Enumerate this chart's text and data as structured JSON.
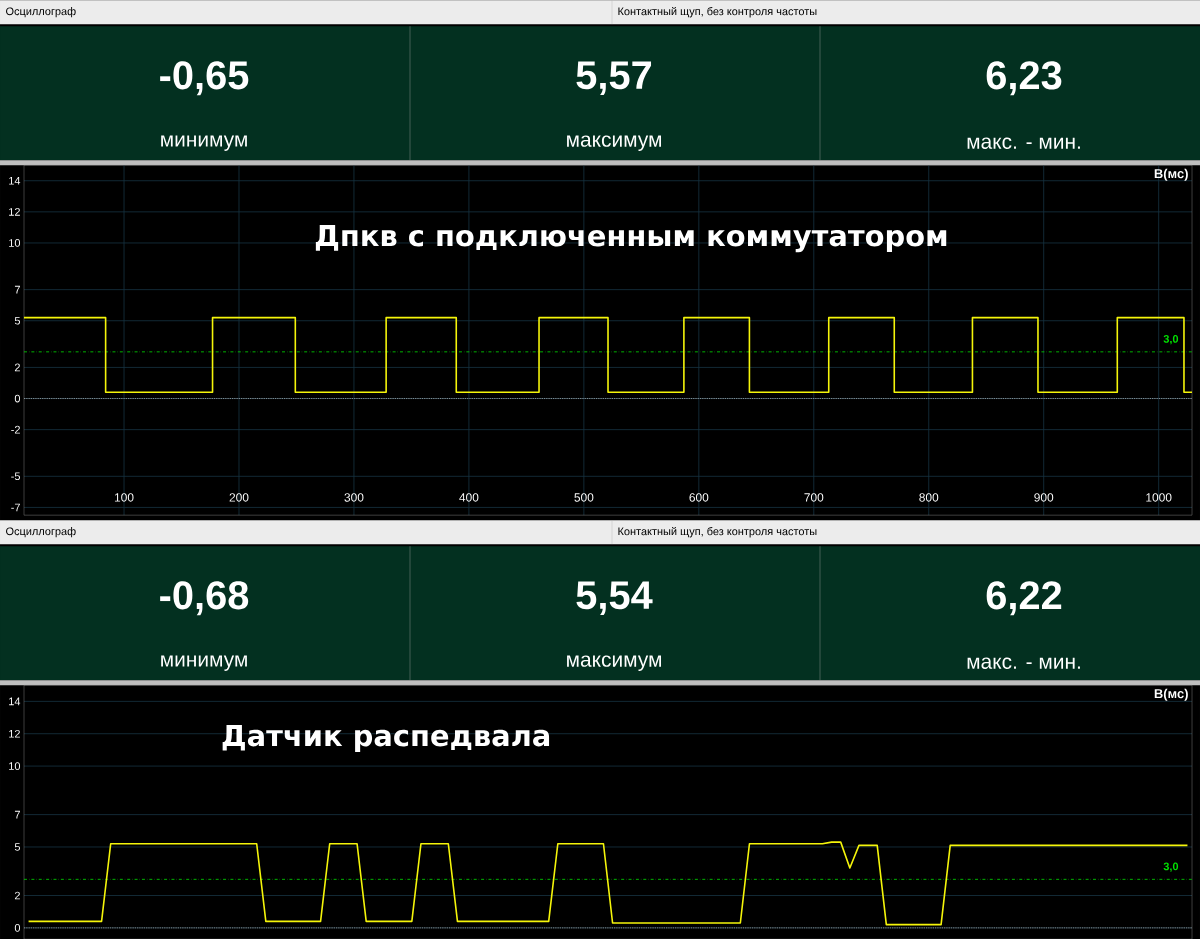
{
  "chart_data": [
    {
      "type": "line",
      "title": "Дпкв с подключенным коммутатором",
      "ylabel": "В(мс)",
      "annotations": [
        "Осциллограф",
        "Контактный щуп, без контроля частоты",
        "-0,65",
        "минимум",
        "5,57",
        "максимум",
        "6,23",
        "макс. - мин."
      ],
      "x": [
        13,
        84,
        84,
        177,
        177,
        249,
        249,
        328,
        328,
        389,
        389,
        461,
        461,
        521,
        521,
        587,
        587,
        644,
        644,
        713,
        713,
        770,
        770,
        838,
        838,
        895,
        895,
        964,
        964,
        1022,
        1022,
        1029
      ],
      "series": [
        {
          "color": "#f5f50a",
          "values": [
            5.2,
            5.2,
            0.4,
            0.4,
            5.2,
            5.2,
            0.4,
            0.4,
            5.2,
            5.2,
            0.4,
            0.4,
            5.2,
            5.2,
            0.4,
            0.4,
            5.2,
            5.2,
            0.4,
            0.4,
            5.2,
            5.2,
            0.4,
            0.4,
            5.2,
            5.2,
            0.4,
            0.4,
            5.2,
            5.2,
            0.4,
            0.4
          ]
        }
      ],
      "xlim": [
        13,
        1029
      ],
      "xticks": [
        100,
        200,
        300,
        400,
        500,
        600,
        700,
        800,
        900,
        1000
      ],
      "ylim": [
        -7.5,
        15
      ],
      "yticks": [
        -7,
        -5,
        -2,
        0,
        2,
        5,
        7,
        10,
        12,
        14
      ],
      "ref_lines": [
        {
          "axis": "y",
          "value": 0,
          "color": "#c8c8c8",
          "line_style": "dotted"
        },
        {
          "axis": "y",
          "value": 3,
          "label": "3,0",
          "color": "#00e000",
          "line_style": "dashed"
        }
      ],
      "grid": true
    },
    {
      "type": "line",
      "title": "Датчик распедвала",
      "ylabel": "В(мс)",
      "annotations": [
        "Осциллограф",
        "Контактный щуп, без контроля частоты",
        "-0,68",
        "минимум",
        "5,54",
        "максимум",
        "6,22",
        "макс. - мин."
      ],
      "categories": [
        null,
        null,
        null,
        null,
        null,
        null,
        null,
        null,
        null,
        null,
        null,
        null,
        null,
        null,
        null,
        null,
        null,
        null,
        null,
        null,
        null,
        null,
        null,
        null,
        null,
        null,
        null,
        null,
        null,
        null,
        null,
        null,
        null,
        null,
        null,
        null,
        null,
        null,
        null,
        null,
        null,
        null,
        null,
        null,
        null,
        null,
        null,
        null,
        null,
        null,
        null,
        null,
        null,
        null,
        null,
        null,
        null,
        null,
        null,
        null,
        null,
        null,
        null,
        null,
        null,
        null,
        null,
        null,
        null,
        null,
        null,
        null,
        null,
        null,
        null,
        null,
        null,
        null,
        null,
        null,
        null,
        null,
        null,
        null,
        null,
        null,
        null,
        null,
        null,
        null,
        null,
        null,
        null,
        null,
        null,
        null,
        null,
        null,
        null,
        null,
        null,
        null,
        null,
        null,
        null,
        null,
        null,
        null,
        null,
        null,
        null,
        null,
        null,
        null,
        null,
        null,
        null,
        null,
        null,
        null,
        null,
        null,
        null,
        null,
        null,
        null,
        null,
        null
      ],
      "series": [
        {
          "color": "#f5f50a",
          "values": [
            0.4,
            0.4,
            0.4,
            0.4,
            0.4,
            0.4,
            0.4,
            0.4,
            0.4,
            5.2,
            5.2,
            5.2,
            5.2,
            5.2,
            5.2,
            5.2,
            5.2,
            5.2,
            5.2,
            5.2,
            5.2,
            5.2,
            5.2,
            5.2,
            5.2,
            5.2,
            0.4,
            0.4,
            0.4,
            0.4,
            0.4,
            0.4,
            0.4,
            5.2,
            5.2,
            5.2,
            5.2,
            0.4,
            0.4,
            0.4,
            0.4,
            0.4,
            0.4,
            5.2,
            5.2,
            5.2,
            5.2,
            0.4,
            0.4,
            0.4,
            0.4,
            0.4,
            0.4,
            0.4,
            0.4,
            0.4,
            0.4,
            0.4,
            5.2,
            5.2,
            5.2,
            5.2,
            5.2,
            5.2,
            0.3,
            0.3,
            0.3,
            0.3,
            0.3,
            0.3,
            0.3,
            0.3,
            0.3,
            0.3,
            0.3,
            0.3,
            0.3,
            0.3,
            0.3,
            5.2,
            5.2,
            5.2,
            5.2,
            5.2,
            5.2,
            5.2,
            5.2,
            5.2,
            5.3,
            5.3,
            3.7,
            5.1,
            5.1,
            5.1,
            0.2,
            0.2,
            0.2,
            0.2,
            0.2,
            0.2,
            0.2,
            5.1,
            5.1,
            5.1,
            5.1,
            5.1,
            5.1,
            5.1,
            5.1,
            5.1,
            5.1,
            5.1,
            5.1,
            5.1,
            5.1,
            5.1,
            5.1,
            5.1,
            5.1,
            5.1,
            5.1,
            5.1,
            5.1,
            5.1,
            5.1,
            5.1,
            5.1,
            5.1
          ]
        }
      ],
      "ylim": [
        -0.7,
        15
      ],
      "yticks": [
        0,
        2,
        5,
        7,
        10,
        12,
        14
      ],
      "ref_lines": [
        {
          "axis": "y",
          "value": 0,
          "color": "#c8c8c8",
          "line_style": "dotted"
        },
        {
          "axis": "y",
          "value": 3,
          "label": "3,0",
          "color": "#00e000",
          "line_style": "dashed"
        }
      ],
      "tick_labels": "y",
      "grid": "y"
    }
  ]
}
